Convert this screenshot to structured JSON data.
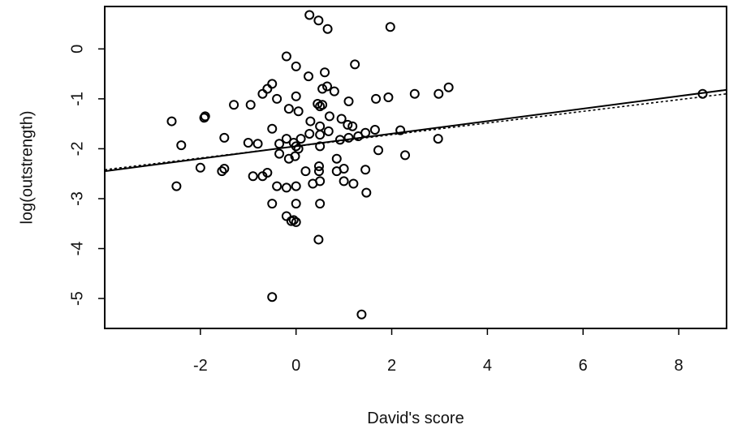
{
  "chart_data": {
    "type": "scatter",
    "xlabel": "David's score",
    "ylabel": "log(outstrength)",
    "xlim": [
      -4.0,
      9.0
    ],
    "ylim": [
      -5.6,
      0.85
    ],
    "x_ticks": [
      -2,
      0,
      2,
      4,
      6,
      8
    ],
    "y_ticks": [
      0,
      -1,
      -2,
      -3,
      -4,
      -5
    ],
    "x_tick_labels": [
      "-2",
      "0",
      "2",
      "4",
      "6",
      "8"
    ],
    "y_tick_labels": [
      "0",
      "-1",
      "-2",
      "-3",
      "-4",
      "-5"
    ],
    "grid": false,
    "legend": "none",
    "point_marker": "open-circle",
    "series": [
      {
        "points": [
          [
            0.28,
            0.68
          ],
          [
            0.47,
            0.57
          ],
          [
            0.66,
            0.4
          ],
          [
            1.97,
            0.44
          ],
          [
            -0.2,
            -0.15
          ],
          [
            0.0,
            -0.35
          ],
          [
            0.26,
            -0.55
          ],
          [
            0.6,
            -0.47
          ],
          [
            1.23,
            -0.31
          ],
          [
            -0.5,
            -0.7
          ],
          [
            -0.6,
            -0.8
          ],
          [
            -0.7,
            -0.9
          ],
          [
            -0.4,
            -1.0
          ],
          [
            0.0,
            -0.95
          ],
          [
            0.55,
            -0.8
          ],
          [
            0.65,
            -0.75
          ],
          [
            0.8,
            -0.85
          ],
          [
            1.1,
            -1.05
          ],
          [
            1.67,
            -1.0
          ],
          [
            1.93,
            -0.97
          ],
          [
            2.48,
            -0.9
          ],
          [
            2.98,
            -0.9
          ],
          [
            3.19,
            -0.77
          ],
          [
            8.5,
            -0.9
          ],
          [
            -2.6,
            -1.45
          ],
          [
            -2.4,
            -1.93
          ],
          [
            -1.9,
            -1.35
          ],
          [
            -1.92,
            -1.38
          ],
          [
            -1.3,
            -1.12
          ],
          [
            -0.95,
            -1.12
          ],
          [
            -0.15,
            -1.2
          ],
          [
            0.05,
            -1.25
          ],
          [
            0.45,
            -1.1
          ],
          [
            0.5,
            -1.15
          ],
          [
            0.55,
            -1.12
          ],
          [
            0.3,
            -1.45
          ],
          [
            0.5,
            -1.55
          ],
          [
            0.7,
            -1.35
          ],
          [
            0.95,
            -1.4
          ],
          [
            1.08,
            -1.52
          ],
          [
            1.18,
            -1.55
          ],
          [
            1.45,
            -1.68
          ],
          [
            1.65,
            -1.62
          ],
          [
            2.18,
            -1.63
          ],
          [
            -1.5,
            -1.78
          ],
          [
            -1.0,
            -1.88
          ],
          [
            -0.8,
            -1.9
          ],
          [
            -0.5,
            -1.6
          ],
          [
            -0.35,
            -1.9
          ],
          [
            -0.2,
            -1.8
          ],
          [
            -0.05,
            -1.88
          ],
          [
            0.0,
            -1.95
          ],
          [
            0.1,
            -1.8
          ],
          [
            0.28,
            -1.7
          ],
          [
            0.5,
            -1.72
          ],
          [
            0.5,
            -1.95
          ],
          [
            0.68,
            -1.65
          ],
          [
            0.92,
            -1.82
          ],
          [
            1.1,
            -1.78
          ],
          [
            1.3,
            -1.75
          ],
          [
            1.72,
            -2.03
          ],
          [
            2.28,
            -2.13
          ],
          [
            2.97,
            -1.8
          ],
          [
            -2.0,
            -2.38
          ],
          [
            -1.55,
            -2.45
          ],
          [
            -1.5,
            -2.4
          ],
          [
            -0.9,
            -2.55
          ],
          [
            -0.6,
            -2.48
          ],
          [
            -0.35,
            -2.1
          ],
          [
            -0.15,
            -2.2
          ],
          [
            -0.02,
            -2.15
          ],
          [
            0.05,
            -2.0
          ],
          [
            0.2,
            -2.45
          ],
          [
            0.48,
            -2.35
          ],
          [
            0.48,
            -2.45
          ],
          [
            0.85,
            -2.2
          ],
          [
            0.85,
            -2.45
          ],
          [
            1.0,
            -2.4
          ],
          [
            1.45,
            -2.42
          ],
          [
            -2.5,
            -2.75
          ],
          [
            -0.7,
            -2.55
          ],
          [
            -0.4,
            -2.75
          ],
          [
            -0.2,
            -2.78
          ],
          [
            0.0,
            -2.75
          ],
          [
            0.35,
            -2.7
          ],
          [
            0.5,
            -2.65
          ],
          [
            1.0,
            -2.65
          ],
          [
            1.2,
            -2.7
          ],
          [
            1.47,
            -2.88
          ],
          [
            -0.5,
            -3.1
          ],
          [
            -0.2,
            -3.35
          ],
          [
            -0.1,
            -3.45
          ],
          [
            -0.05,
            -3.43
          ],
          [
            0.0,
            -3.47
          ],
          [
            0.0,
            -3.1
          ],
          [
            0.5,
            -3.1
          ],
          [
            0.47,
            -3.82
          ],
          [
            -0.5,
            -4.97
          ],
          [
            1.37,
            -5.32
          ]
        ]
      }
    ],
    "lines": [
      {
        "style": "solid",
        "x": [
          -4.0,
          9.0
        ],
        "y": [
          -2.45,
          -0.82
        ]
      },
      {
        "style": "dotted",
        "x": [
          -4.0,
          9.0
        ],
        "y": [
          -2.42,
          -0.9
        ]
      }
    ]
  }
}
